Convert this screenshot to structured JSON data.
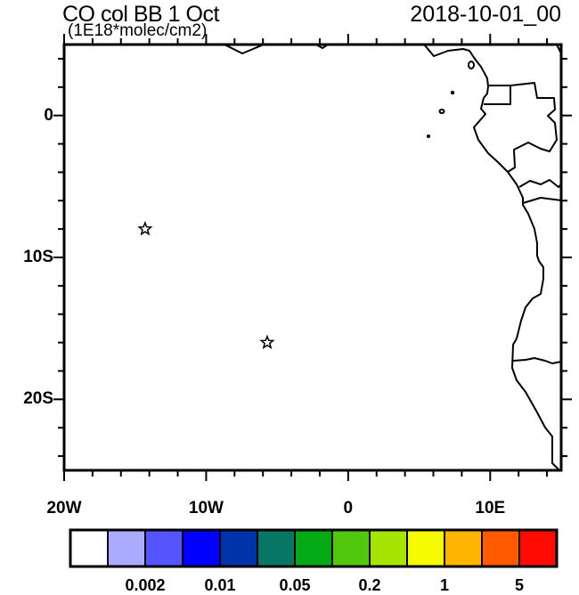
{
  "title": "CO col BB 1 Oct",
  "units": "(1E18*molec/cm2)",
  "datetime": "2018-10-01_00",
  "map": {
    "lon_range": [
      -20,
      15
    ],
    "lat_range": [
      -25,
      5
    ],
    "lon_labels": [
      "20W",
      "10W",
      "0",
      "10E"
    ],
    "lat_labels": [
      "0",
      "10S",
      "20S"
    ],
    "markers": [
      {
        "icon": "star-icon",
        "lon": -14.3,
        "lat": -8.0
      },
      {
        "icon": "star-icon",
        "lon": -5.7,
        "lat": -16.0
      }
    ],
    "field": "all white (below lowest contour level)"
  },
  "colorbar": {
    "colors": [
      "#ffffff",
      "#aaaaff",
      "#5555ff",
      "#0000ff",
      "#0033aa",
      "#077664",
      "#03aa15",
      "#52c80c",
      "#a6e402",
      "#f6fb01",
      "#ffb400",
      "#ff5a00",
      "#ff0a00"
    ],
    "labels": [
      "0.002",
      "0.01",
      "0.05",
      "0.2",
      "1",
      "5"
    ]
  }
}
